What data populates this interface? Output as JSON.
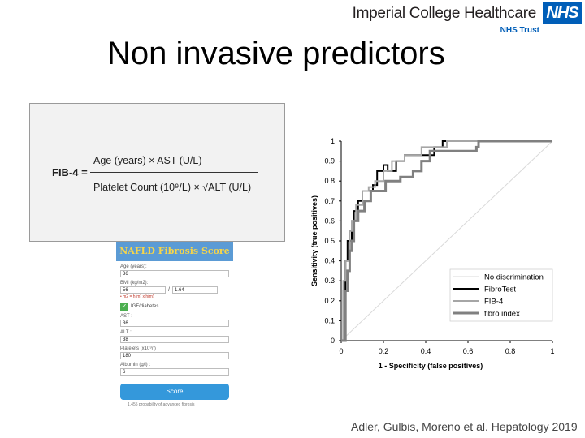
{
  "header": {
    "brand_name": "Imperial College Healthcare",
    "brand_trust": "NHS Trust",
    "logo_text": "NHS",
    "title": "Non invasive predictors"
  },
  "fib4": {
    "label": "FIB-4 =",
    "numerator": "Age (years) × AST (U/L)",
    "denominator": "Platelet Count (10⁹/L) × √ALT (U/L)"
  },
  "calculator": {
    "title": "NAFLD Fibrosis Score",
    "age_label": "Age (years):",
    "age_value": "36",
    "bmi_label": "BMI (kg/m2):",
    "weight_value": "56",
    "height_value": "1.64",
    "bmi_hint": "• m2 = h(m) x h(m)",
    "ifg_label": "IGF/diabetes",
    "ast_label": "AST :",
    "ast_value": "36",
    "alt_label": "ALT :",
    "alt_value": "38",
    "platelets_label": "Platelets (x10⁹/l) :",
    "platelets_value": "180",
    "albumin_label": "Albumin (g/l) :",
    "albumin_value": "6",
    "button_label": "Score",
    "footer": "1.455 probability of advanced fibrosis"
  },
  "citation": "Adler, Gulbis, Moreno et al. Hepatology 2019",
  "chart_data": {
    "type": "line",
    "xlabel": "1 - Specificity (false positives)",
    "ylabel": "Sensitivity (true positives)",
    "xlim": [
      0,
      1
    ],
    "ylim": [
      0,
      1
    ],
    "x_ticks": [
      "0",
      "0.2",
      "0.4",
      "0.6",
      "0.8",
      "1"
    ],
    "y_ticks": [
      "0",
      "0.1",
      "0.2",
      "0.3",
      "0.4",
      "0.5",
      "0.6",
      "0.7",
      "0.8",
      "0.9",
      "1"
    ],
    "legend_position": "bottom-right",
    "series": [
      {
        "name": "No discrimination",
        "color": "#d9d9d9",
        "width": 1,
        "points": [
          [
            0,
            0
          ],
          [
            1,
            1
          ]
        ]
      },
      {
        "name": "FibroTest",
        "color": "#000000",
        "width": 2,
        "points": [
          [
            0,
            0
          ],
          [
            0.01,
            0
          ],
          [
            0.01,
            0.25
          ],
          [
            0.02,
            0.25
          ],
          [
            0.02,
            0.4
          ],
          [
            0.03,
            0.4
          ],
          [
            0.03,
            0.5
          ],
          [
            0.05,
            0.5
          ],
          [
            0.05,
            0.6
          ],
          [
            0.06,
            0.6
          ],
          [
            0.06,
            0.65
          ],
          [
            0.08,
            0.65
          ],
          [
            0.08,
            0.7
          ],
          [
            0.1,
            0.7
          ],
          [
            0.1,
            0.75
          ],
          [
            0.15,
            0.75
          ],
          [
            0.15,
            0.78
          ],
          [
            0.17,
            0.78
          ],
          [
            0.17,
            0.85
          ],
          [
            0.2,
            0.85
          ],
          [
            0.2,
            0.88
          ],
          [
            0.22,
            0.88
          ],
          [
            0.22,
            0.85
          ],
          [
            0.26,
            0.85
          ],
          [
            0.26,
            0.9
          ],
          [
            0.3,
            0.9
          ],
          [
            0.3,
            0.93
          ],
          [
            0.44,
            0.93
          ],
          [
            0.44,
            0.97
          ],
          [
            0.48,
            0.97
          ],
          [
            0.48,
            1
          ],
          [
            1,
            1
          ]
        ]
      },
      {
        "name": "FIB-4",
        "color": "#a6a6a6",
        "width": 2,
        "points": [
          [
            0,
            0
          ],
          [
            0.01,
            0
          ],
          [
            0.01,
            0.3
          ],
          [
            0.02,
            0.3
          ],
          [
            0.02,
            0.4
          ],
          [
            0.04,
            0.4
          ],
          [
            0.04,
            0.55
          ],
          [
            0.05,
            0.55
          ],
          [
            0.05,
            0.6
          ],
          [
            0.07,
            0.6
          ],
          [
            0.07,
            0.68
          ],
          [
            0.1,
            0.68
          ],
          [
            0.1,
            0.75
          ],
          [
            0.13,
            0.75
          ],
          [
            0.13,
            0.77
          ],
          [
            0.16,
            0.77
          ],
          [
            0.16,
            0.8
          ],
          [
            0.2,
            0.8
          ],
          [
            0.2,
            0.85
          ],
          [
            0.24,
            0.85
          ],
          [
            0.24,
            0.9
          ],
          [
            0.3,
            0.9
          ],
          [
            0.3,
            0.93
          ],
          [
            0.38,
            0.93
          ],
          [
            0.38,
            0.97
          ],
          [
            0.5,
            0.97
          ],
          [
            0.5,
            1
          ],
          [
            1,
            1
          ]
        ]
      },
      {
        "name": "fibro index",
        "color": "#808080",
        "width": 3,
        "points": [
          [
            0,
            0
          ],
          [
            0.02,
            0
          ],
          [
            0.02,
            0.25
          ],
          [
            0.03,
            0.25
          ],
          [
            0.03,
            0.35
          ],
          [
            0.04,
            0.35
          ],
          [
            0.04,
            0.45
          ],
          [
            0.05,
            0.45
          ],
          [
            0.05,
            0.5
          ],
          [
            0.06,
            0.5
          ],
          [
            0.06,
            0.6
          ],
          [
            0.08,
            0.6
          ],
          [
            0.08,
            0.65
          ],
          [
            0.11,
            0.65
          ],
          [
            0.11,
            0.7
          ],
          [
            0.14,
            0.7
          ],
          [
            0.14,
            0.75
          ],
          [
            0.21,
            0.75
          ],
          [
            0.21,
            0.8
          ],
          [
            0.28,
            0.8
          ],
          [
            0.28,
            0.82
          ],
          [
            0.34,
            0.82
          ],
          [
            0.34,
            0.85
          ],
          [
            0.38,
            0.85
          ],
          [
            0.38,
            0.9
          ],
          [
            0.42,
            0.9
          ],
          [
            0.42,
            0.95
          ],
          [
            0.64,
            0.95
          ],
          [
            0.64,
            0.97
          ],
          [
            0.65,
            0.97
          ],
          [
            0.65,
            1
          ],
          [
            1,
            1
          ]
        ]
      }
    ]
  }
}
